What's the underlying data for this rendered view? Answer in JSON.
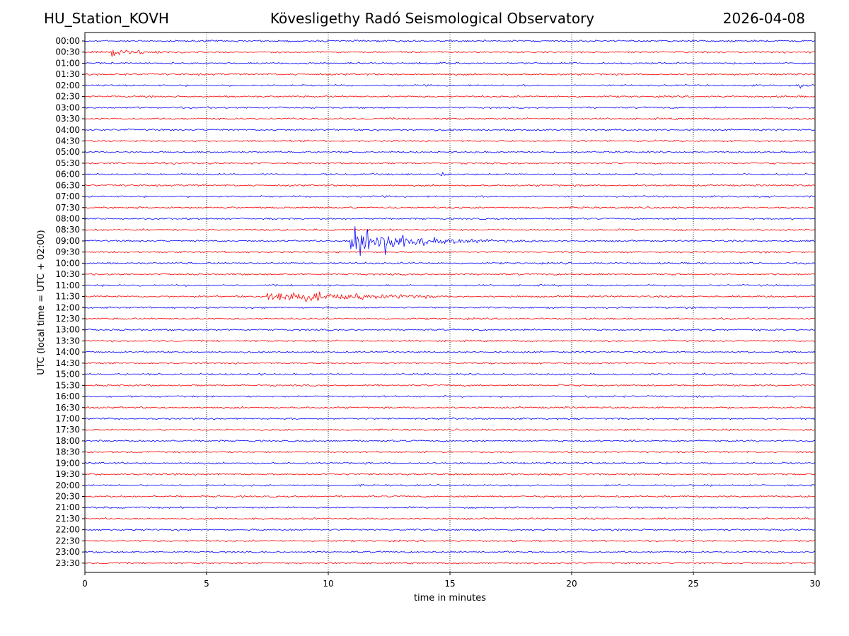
{
  "header": {
    "station": "HU_Station_KOVH",
    "observatory": "Kövesligethy Radó Seismological Observatory",
    "date": "2026-04-08"
  },
  "chart_data": {
    "type": "line",
    "title": "Kövesligethy Radó Seismological Observatory",
    "xlabel": "time in minutes",
    "ylabel": "UTC (local time = UTC + 02:00)",
    "xlim": [
      0,
      30
    ],
    "x_ticks": [
      0,
      5,
      10,
      15,
      20,
      25,
      30
    ],
    "grid": "vertical dotted at each x tick",
    "colors": {
      "even_rows": "#0000ff",
      "odd_rows": "#ff0000",
      "frame": "#000000"
    },
    "rows": [
      "00:00",
      "00:30",
      "01:00",
      "01:30",
      "02:00",
      "02:30",
      "03:00",
      "03:30",
      "04:00",
      "04:30",
      "05:00",
      "05:30",
      "06:00",
      "06:30",
      "07:00",
      "07:30",
      "08:00",
      "08:30",
      "09:00",
      "09:30",
      "10:00",
      "10:30",
      "11:00",
      "11:30",
      "12:00",
      "12:30",
      "13:00",
      "13:30",
      "14:00",
      "14:30",
      "15:00",
      "15:30",
      "16:00",
      "16:30",
      "17:00",
      "17:30",
      "18:00",
      "18:30",
      "19:00",
      "19:30",
      "20:00",
      "20:30",
      "21:00",
      "21:30",
      "22:00",
      "22:30",
      "23:00",
      "23:30"
    ],
    "noise_level": 1,
    "events": [
      {
        "row": "00:30",
        "start": 1.1,
        "end": 3.6,
        "peak": 5,
        "decay": 0.9
      },
      {
        "row": "02:00",
        "start": 29.3,
        "end": 29.7,
        "peak": 4,
        "decay": 0.15
      },
      {
        "row": "06:00",
        "start": 14.6,
        "end": 15.1,
        "peak": 2.5,
        "decay": 0.3
      },
      {
        "row": "09:00",
        "start": 10.9,
        "end": 18.5,
        "peak": 26,
        "decay": 1.8
      },
      {
        "row": "11:30",
        "start": 7.5,
        "end": 14.5,
        "peak": 9,
        "decay": 3.0
      },
      {
        "row": "15:30",
        "start": 19.3,
        "end": 19.8,
        "peak": 2.5,
        "decay": 0.2
      },
      {
        "row": "18:00",
        "start": 22.4,
        "end": 22.6,
        "peak": 5,
        "decay": 0.08
      }
    ]
  }
}
